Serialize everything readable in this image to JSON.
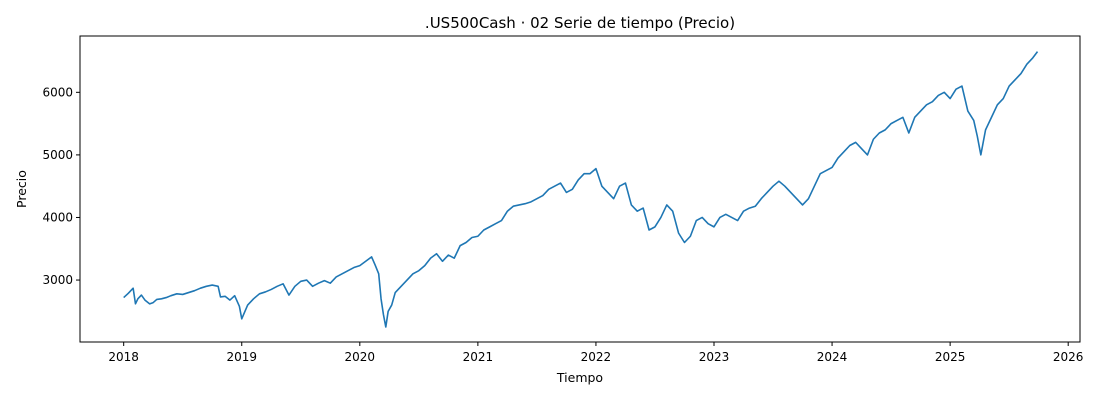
{
  "chart_data": {
    "type": "line",
    "title": ".US500Cash · 02 Serie de tiempo (Precio)",
    "xlabel": "Tiempo",
    "ylabel": "Precio",
    "xlim": [
      2017.63,
      2026.1
    ],
    "ylim": [
      2010,
      6900
    ],
    "x_ticks": [
      2018,
      2019,
      2020,
      2021,
      2022,
      2023,
      2024,
      2025,
      2026
    ],
    "x_tick_labels": [
      "2018",
      "2019",
      "2020",
      "2021",
      "2022",
      "2023",
      "2024",
      "2025",
      "2026"
    ],
    "y_ticks": [
      3000,
      4000,
      5000,
      6000
    ],
    "y_tick_labels": [
      "3000",
      "4000",
      "5000",
      "6000"
    ],
    "grid": false,
    "series": [
      {
        "color": "#1f77b4",
        "x": [
          2018.0,
          2018.04,
          2018.08,
          2018.1,
          2018.12,
          2018.15,
          2018.18,
          2018.22,
          2018.25,
          2018.28,
          2018.32,
          2018.36,
          2018.4,
          2018.45,
          2018.5,
          2018.55,
          2018.6,
          2018.65,
          2018.7,
          2018.75,
          2018.8,
          2018.82,
          2018.86,
          2018.9,
          2018.94,
          2018.98,
          2019.0,
          2019.05,
          2019.1,
          2019.15,
          2019.2,
          2019.25,
          2019.3,
          2019.35,
          2019.4,
          2019.45,
          2019.5,
          2019.55,
          2019.6,
          2019.65,
          2019.7,
          2019.75,
          2019.8,
          2019.85,
          2019.9,
          2019.95,
          2020.0,
          2020.05,
          2020.1,
          2020.13,
          2020.16,
          2020.18,
          2020.2,
          2020.22,
          2020.24,
          2020.27,
          2020.3,
          2020.35,
          2020.4,
          2020.45,
          2020.5,
          2020.55,
          2020.6,
          2020.65,
          2020.7,
          2020.75,
          2020.8,
          2020.85,
          2020.9,
          2020.95,
          2021.0,
          2021.05,
          2021.1,
          2021.15,
          2021.2,
          2021.25,
          2021.3,
          2021.35,
          2021.4,
          2021.45,
          2021.5,
          2021.55,
          2021.6,
          2021.65,
          2021.7,
          2021.75,
          2021.8,
          2021.85,
          2021.9,
          2021.95,
          2022.0,
          2022.05,
          2022.1,
          2022.15,
          2022.2,
          2022.25,
          2022.3,
          2022.35,
          2022.4,
          2022.45,
          2022.5,
          2022.55,
          2022.6,
          2022.65,
          2022.7,
          2022.75,
          2022.8,
          2022.85,
          2022.9,
          2022.95,
          2023.0,
          2023.05,
          2023.1,
          2023.15,
          2023.2,
          2023.25,
          2023.3,
          2023.35,
          2023.4,
          2023.45,
          2023.5,
          2023.55,
          2023.6,
          2023.65,
          2023.7,
          2023.75,
          2023.8,
          2023.85,
          2023.9,
          2023.95,
          2024.0,
          2024.05,
          2024.1,
          2024.15,
          2024.2,
          2024.25,
          2024.3,
          2024.35,
          2024.4,
          2024.45,
          2024.5,
          2024.55,
          2024.6,
          2024.65,
          2024.7,
          2024.75,
          2024.8,
          2024.85,
          2024.9,
          2024.95,
          2025.0,
          2025.05,
          2025.1,
          2025.15,
          2025.2,
          2025.23,
          2025.26,
          2025.28,
          2025.3,
          2025.35,
          2025.4,
          2025.45,
          2025.5,
          2025.55,
          2025.6,
          2025.65,
          2025.7,
          2025.74
        ],
        "y": [
          2720,
          2790,
          2870,
          2620,
          2700,
          2760,
          2680,
          2620,
          2640,
          2690,
          2700,
          2720,
          2750,
          2780,
          2770,
          2800,
          2830,
          2870,
          2900,
          2920,
          2900,
          2730,
          2740,
          2680,
          2750,
          2580,
          2380,
          2600,
          2700,
          2780,
          2810,
          2850,
          2900,
          2940,
          2760,
          2900,
          2980,
          3000,
          2900,
          2950,
          2990,
          2950,
          3050,
          3100,
          3150,
          3200,
          3230,
          3300,
          3370,
          3240,
          3100,
          2700,
          2450,
          2250,
          2500,
          2600,
          2800,
          2900,
          3000,
          3100,
          3150,
          3230,
          3350,
          3420,
          3300,
          3400,
          3350,
          3550,
          3600,
          3680,
          3700,
          3800,
          3850,
          3900,
          3950,
          4100,
          4180,
          4200,
          4220,
          4250,
          4300,
          4350,
          4450,
          4500,
          4550,
          4400,
          4450,
          4600,
          4700,
          4700,
          4780,
          4500,
          4400,
          4300,
          4500,
          4550,
          4200,
          4100,
          4150,
          3800,
          3850,
          4000,
          4200,
          4100,
          3750,
          3600,
          3700,
          3950,
          4000,
          3900,
          3850,
          4000,
          4050,
          4000,
          3950,
          4100,
          4150,
          4180,
          4300,
          4400,
          4500,
          4580,
          4500,
          4400,
          4300,
          4200,
          4300,
          4500,
          4700,
          4750,
          4800,
          4950,
          5050,
          5150,
          5200,
          5100,
          5000,
          5250,
          5350,
          5400,
          5500,
          5550,
          5600,
          5350,
          5600,
          5700,
          5800,
          5850,
          5950,
          6000,
          5900,
          6050,
          6100,
          5700,
          5550,
          5300,
          5000,
          5200,
          5400,
          5600,
          5800,
          5900,
          6100,
          6200,
          6300,
          6450,
          6550,
          6650
        ]
      }
    ]
  }
}
